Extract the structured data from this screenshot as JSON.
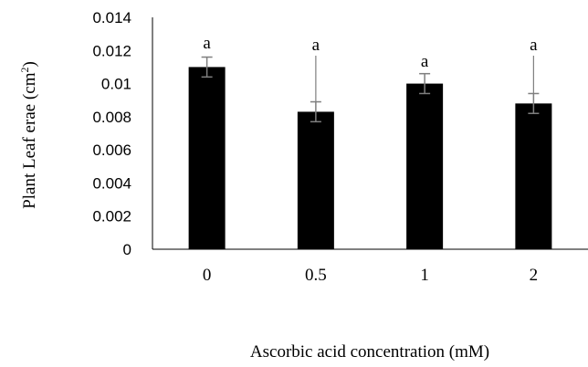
{
  "chart_data": {
    "type": "bar",
    "categories": [
      "0",
      "0.5",
      "1",
      "2"
    ],
    "values": [
      0.011,
      0.0083,
      0.01,
      0.0088
    ],
    "errors": [
      0.0006,
      0.0006,
      0.0006,
      0.0006
    ],
    "significance_labels": [
      "a",
      "a",
      "a",
      "a"
    ],
    "ylim": [
      0,
      0.014
    ],
    "yticks": [
      "0",
      "0.002",
      "0.004",
      "0.006",
      "0.008",
      "0.01",
      "0.012",
      "0.014"
    ],
    "ylabel_main": "Plant Leaf erae (cm",
    "ylabel_sup": "2",
    "ylabel_end": ")",
    "xlabel": "Ascorbic acid concentration (mM)",
    "grid": false,
    "bar_color": "#000000",
    "error_color": "#7f7f7f"
  }
}
